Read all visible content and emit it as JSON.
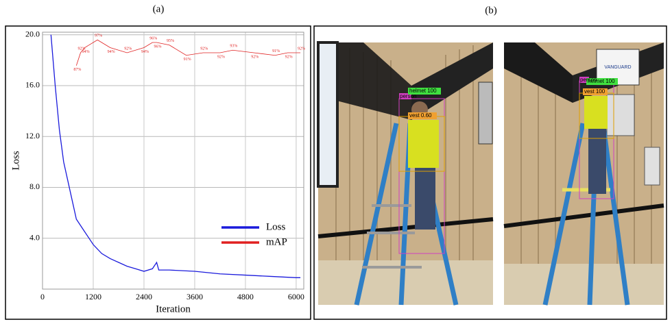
{
  "panels": {
    "a": "(a)",
    "b": "(b)"
  },
  "chart_data": {
    "type": "line",
    "xlabel": "Iteration",
    "ylabel": "Loss",
    "xlim": [
      0,
      6180
    ],
    "ylim": [
      0,
      20.2
    ],
    "y2lim": [
      0,
      100
    ],
    "xticks": [
      0,
      1200,
      2400,
      3600,
      4800,
      6000
    ],
    "yticks": [
      {
        "value": 4,
        "label": "4.0"
      },
      {
        "value": 8,
        "label": "8.0"
      },
      {
        "value": 12,
        "label": "12.0"
      },
      {
        "value": 16,
        "label": "16.0"
      },
      {
        "value": 20,
        "label": "20.0"
      }
    ],
    "grid": true,
    "legend": "lower right",
    "series": [
      {
        "name": "Loss",
        "color": "#1a1adc",
        "x": [
          200,
          300,
          400,
          500,
          600,
          700,
          800,
          1000,
          1200,
          1400,
          1600,
          1800,
          2000,
          2200,
          2400,
          2600,
          2700,
          2750,
          3000,
          3600,
          4200,
          4800,
          5400,
          6000,
          6100
        ],
        "values": [
          20,
          16,
          12.5,
          10,
          8.5,
          7,
          5.5,
          4.5,
          3.5,
          2.8,
          2.4,
          2.1,
          1.8,
          1.6,
          1.4,
          1.6,
          2.1,
          1.5,
          1.5,
          1.4,
          1.2,
          1.1,
          1.0,
          0.9,
          0.9
        ]
      },
      {
        "name": "mAP",
        "color": "#e02020",
        "axis": "y2",
        "x": [
          800,
          900,
          1000,
          1300,
          1600,
          2000,
          2400,
          2600,
          2700,
          3000,
          3400,
          3800,
          4200,
          4500,
          5000,
          5500,
          5800,
          6100
        ],
        "values": [
          87,
          92,
          94,
          97,
          94,
          92,
          94,
          96,
          96,
          95,
          91,
          92,
          92,
          93,
          92,
          91,
          92,
          92
        ],
        "value_labels": [
          "87%",
          "92%",
          "94%",
          "97%",
          "94%",
          "92%",
          "94%",
          "96%",
          "96%",
          "95%",
          "91%",
          "92%",
          "92%",
          "93%",
          "92%",
          "91%",
          "92%",
          "92%"
        ]
      }
    ]
  },
  "photo": {
    "sign": "VANGUARD",
    "left": {
      "person": "person",
      "helmet": "helmet 100",
      "vest": "vest 0.60"
    },
    "right": {
      "person": "person",
      "helmet": "helmet 100",
      "vest": "vest 100"
    }
  }
}
